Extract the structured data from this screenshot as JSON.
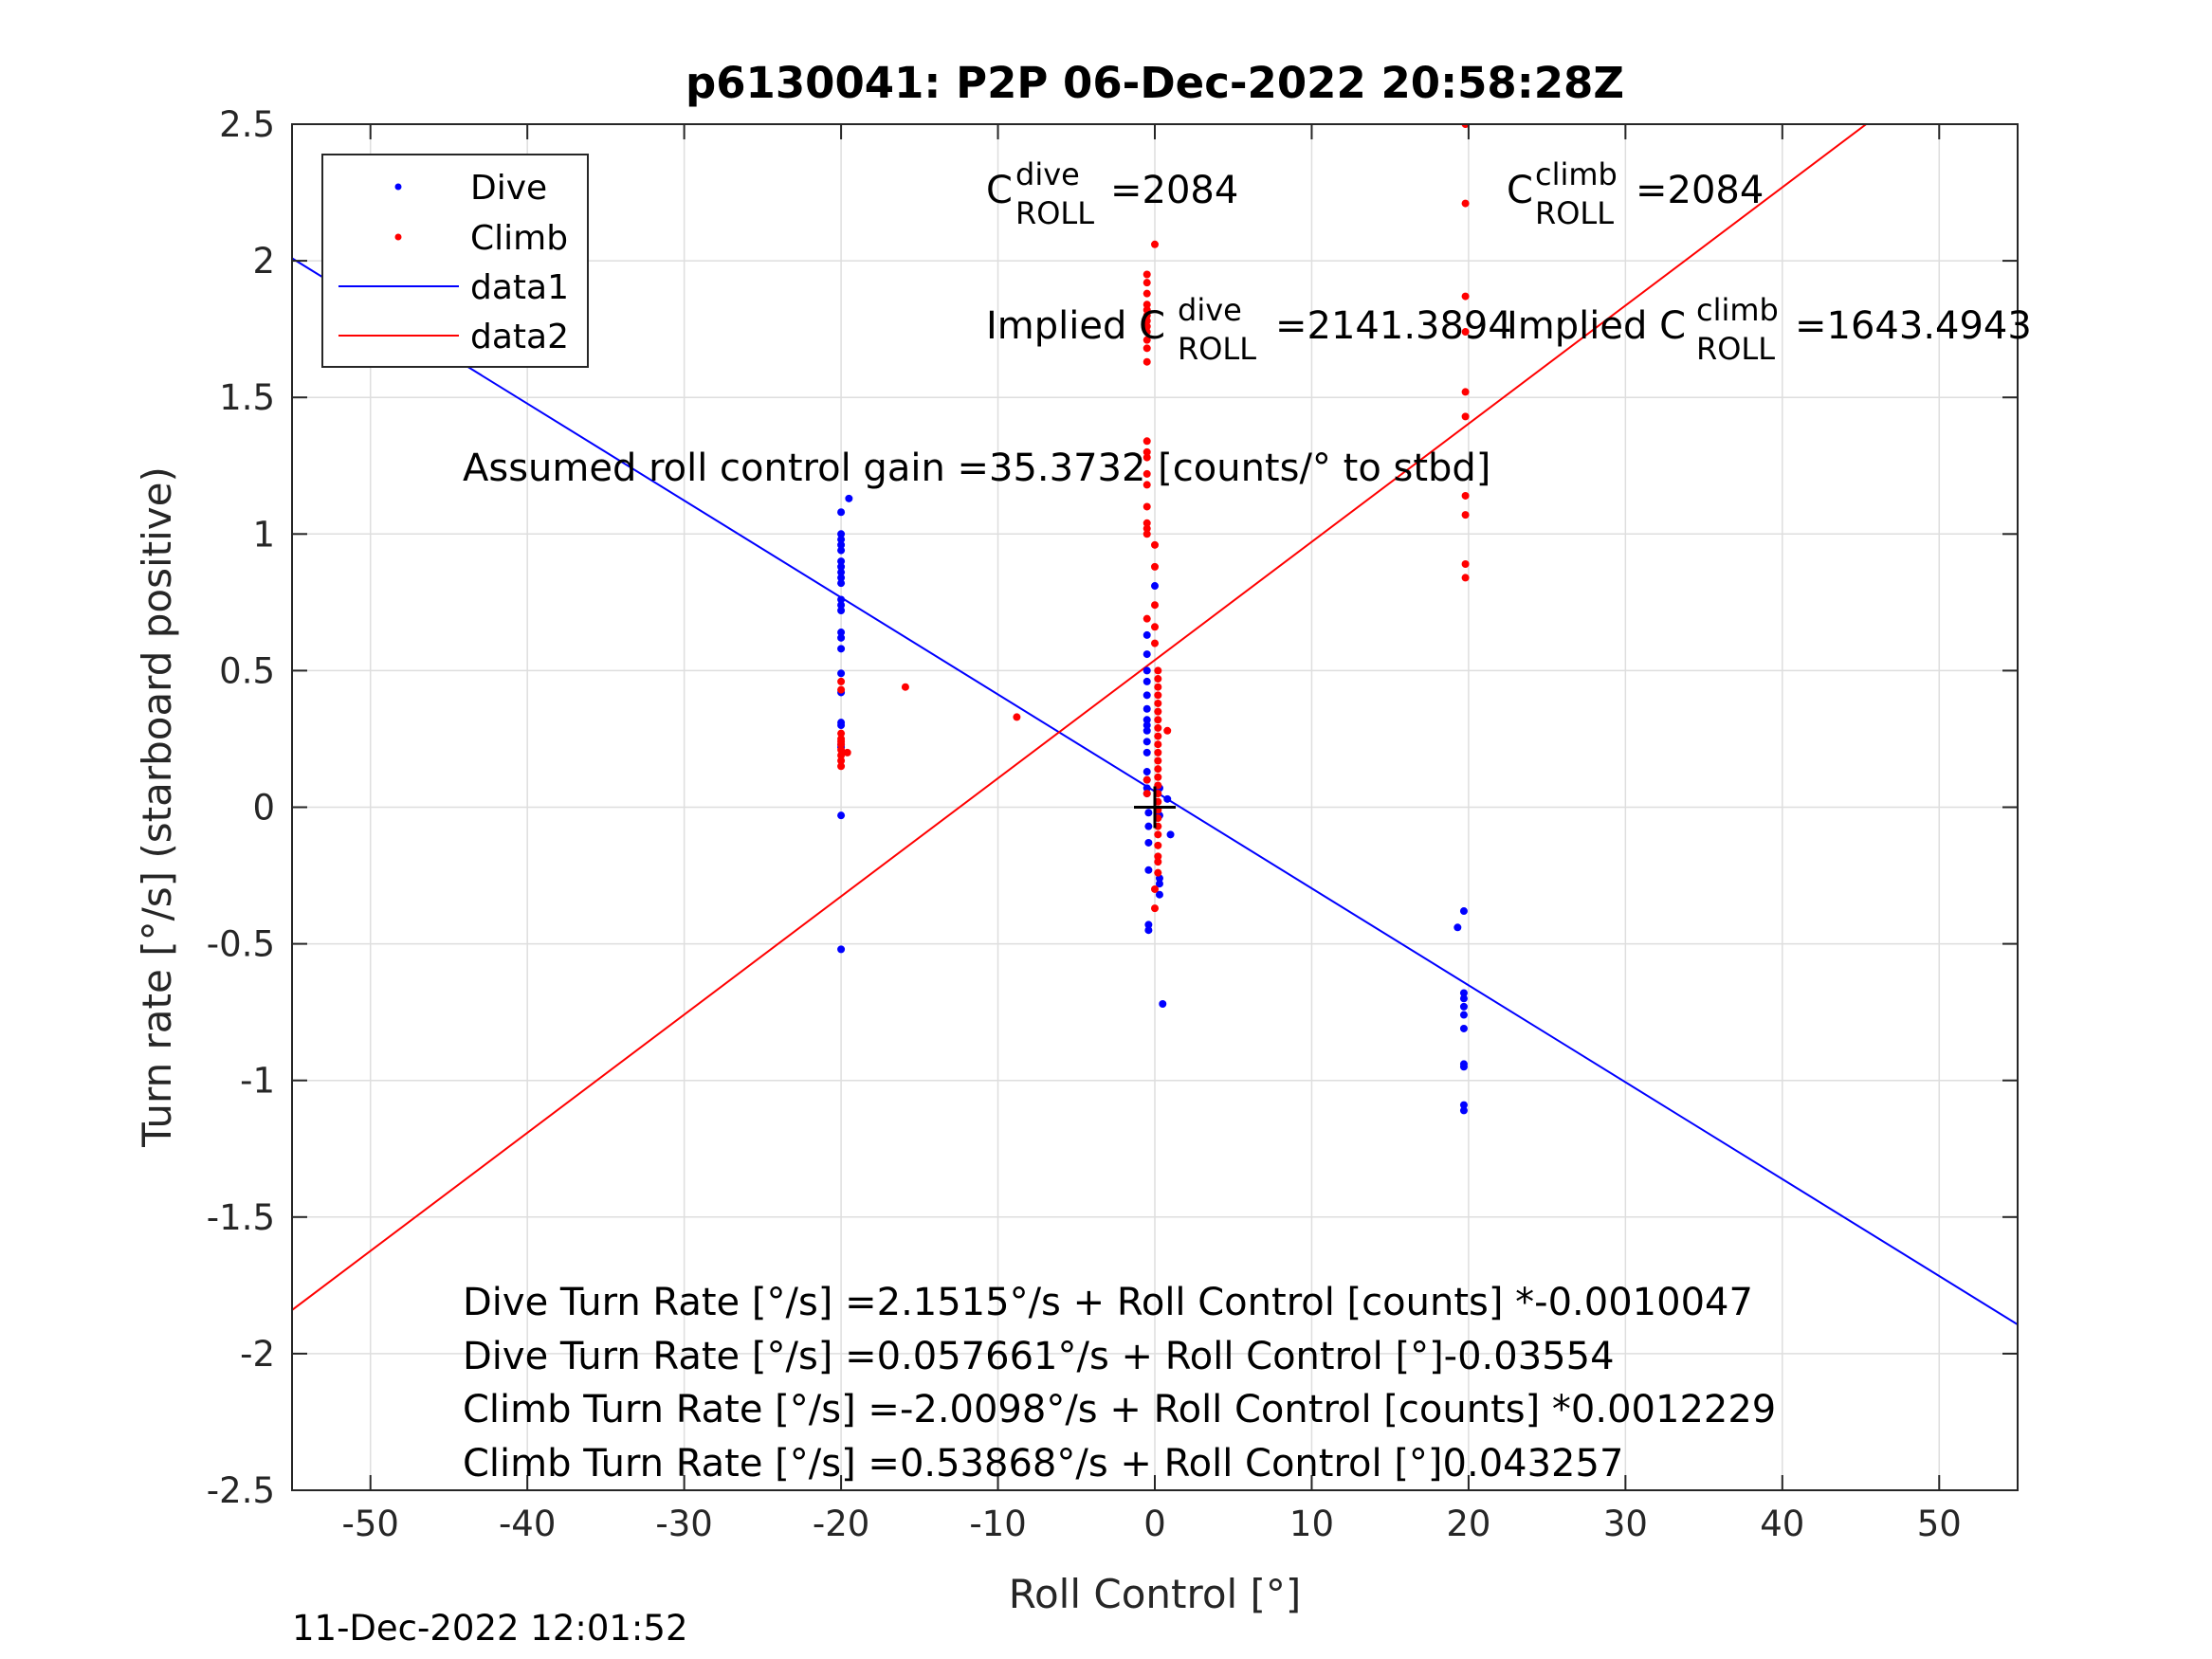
{
  "chart_data": {
    "type": "scatter",
    "title": "p6130041: P2P 06-Dec-2022 20:58:28Z",
    "xlabel": "Roll Control [°]",
    "ylabel": "Turn rate [°/s] (starboard positive)",
    "xlim": [
      -55,
      55
    ],
    "ylim": [
      -2.5,
      2.5
    ],
    "xticks": [
      -50,
      -40,
      -30,
      -20,
      -10,
      0,
      10,
      20,
      30,
      40,
      50
    ],
    "yticks": [
      -2.5,
      -2,
      -1.5,
      -1,
      -0.5,
      0,
      0.5,
      1,
      1.5,
      2,
      2.5
    ],
    "xtick_labels": [
      "-50",
      "-40",
      "-30",
      "-20",
      "-10",
      "0",
      "10",
      "20",
      "30",
      "40",
      "50"
    ],
    "ytick_labels": [
      "-2.5",
      "-2",
      "-1.5",
      "-1",
      "-0.5",
      "0",
      "0.5",
      "1",
      "1.5",
      "2",
      "2.5"
    ],
    "grid": true,
    "legend_position": "top-left",
    "series": [
      {
        "name": "Dive",
        "kind": "points",
        "color": "#0000ff",
        "points": [
          [
            -20,
            1.08
          ],
          [
            -19.5,
            1.13
          ],
          [
            -20,
            1.0
          ],
          [
            -20,
            0.98
          ],
          [
            -20,
            0.96
          ],
          [
            -20,
            0.94
          ],
          [
            -20,
            0.9
          ],
          [
            -20,
            0.88
          ],
          [
            -20,
            0.86
          ],
          [
            -20,
            0.84
          ],
          [
            -20,
            0.82
          ],
          [
            -20,
            0.76
          ],
          [
            -20,
            0.74
          ],
          [
            -20,
            0.72
          ],
          [
            -20,
            0.64
          ],
          [
            -20,
            0.62
          ],
          [
            -20,
            0.58
          ],
          [
            -20,
            0.49
          ],
          [
            -20,
            0.42
          ],
          [
            -20,
            0.31
          ],
          [
            -20,
            0.3
          ],
          [
            -20,
            0.23
          ],
          [
            -20,
            0.22
          ],
          [
            -20,
            -0.03
          ],
          [
            -20,
            -0.52
          ],
          [
            -0.5,
            0.63
          ],
          [
            -0.5,
            0.56
          ],
          [
            -0.5,
            0.5
          ],
          [
            -0.5,
            0.46
          ],
          [
            -0.5,
            0.41
          ],
          [
            -0.5,
            0.36
          ],
          [
            -0.5,
            0.32
          ],
          [
            -0.5,
            0.3
          ],
          [
            -0.5,
            0.28
          ],
          [
            -0.5,
            0.24
          ],
          [
            -0.5,
            0.2
          ],
          [
            -0.5,
            0.13
          ],
          [
            -0.5,
            0.1
          ],
          [
            -0.5,
            0.07
          ],
          [
            -0.5,
            0.05
          ],
          [
            -0.4,
            -0.02
          ],
          [
            -0.4,
            -0.07
          ],
          [
            -0.4,
            -0.13
          ],
          [
            -0.4,
            -0.23
          ],
          [
            -0.4,
            -0.43
          ],
          [
            -0.4,
            -0.45
          ],
          [
            0,
            0.81
          ],
          [
            0.3,
            0.07
          ],
          [
            0.3,
            -0.03
          ],
          [
            0.3,
            -0.26
          ],
          [
            0.3,
            -0.28
          ],
          [
            0.3,
            -0.32
          ],
          [
            0.5,
            -0.72
          ],
          [
            1.0,
            -0.1
          ],
          [
            0.8,
            0.03
          ],
          [
            19.3,
            -0.44
          ],
          [
            19.7,
            -0.38
          ],
          [
            19.7,
            -0.68
          ],
          [
            19.7,
            -0.7
          ],
          [
            19.7,
            -0.73
          ],
          [
            19.7,
            -0.76
          ],
          [
            19.7,
            -0.81
          ],
          [
            19.7,
            -0.94
          ],
          [
            19.7,
            -0.95
          ],
          [
            19.7,
            -1.09
          ],
          [
            19.7,
            -1.11
          ]
        ]
      },
      {
        "name": "Climb",
        "kind": "points",
        "color": "#ff0000",
        "points": [
          [
            -20,
            0.46
          ],
          [
            -20,
            0.43
          ],
          [
            -20,
            0.27
          ],
          [
            -20,
            0.25
          ],
          [
            -20,
            0.23
          ],
          [
            -20,
            0.21
          ],
          [
            -20,
            0.19
          ],
          [
            -20,
            0.17
          ],
          [
            -20,
            0.15
          ],
          [
            -20,
            0.24
          ],
          [
            -19.6,
            0.2
          ],
          [
            -15.9,
            0.44
          ],
          [
            -8.8,
            0.33
          ],
          [
            -0.5,
            1.95
          ],
          [
            -0.5,
            1.92
          ],
          [
            -0.5,
            1.88
          ],
          [
            -0.5,
            1.84
          ],
          [
            -0.5,
            1.82
          ],
          [
            -0.5,
            1.8
          ],
          [
            -0.5,
            1.78
          ],
          [
            -0.5,
            1.76
          ],
          [
            -0.5,
            1.74
          ],
          [
            -0.5,
            1.71
          ],
          [
            -0.5,
            1.68
          ],
          [
            -0.5,
            1.63
          ],
          [
            -0.5,
            1.34
          ],
          [
            -0.5,
            1.3
          ],
          [
            -0.5,
            1.28
          ],
          [
            -0.5,
            1.22
          ],
          [
            -0.5,
            1.18
          ],
          [
            -0.5,
            1.1
          ],
          [
            -0.5,
            1.04
          ],
          [
            -0.5,
            1.02
          ],
          [
            -0.5,
            1.0
          ],
          [
            -0.5,
            0.69
          ],
          [
            -0.5,
            0.1
          ],
          [
            -0.5,
            0.05
          ],
          [
            0,
            2.06
          ],
          [
            0,
            0.96
          ],
          [
            0,
            0.88
          ],
          [
            0,
            0.74
          ],
          [
            0,
            0.66
          ],
          [
            0,
            0.6
          ],
          [
            0.2,
            0.5
          ],
          [
            0.2,
            0.47
          ],
          [
            0.2,
            0.44
          ],
          [
            0.2,
            0.41
          ],
          [
            0.2,
            0.38
          ],
          [
            0.2,
            0.35
          ],
          [
            0.2,
            0.32
          ],
          [
            0.2,
            0.29
          ],
          [
            0.2,
            0.26
          ],
          [
            0.2,
            0.23
          ],
          [
            0.2,
            0.2
          ],
          [
            0.2,
            0.17
          ],
          [
            0.2,
            0.14
          ],
          [
            0.2,
            0.11
          ],
          [
            0.2,
            0.08
          ],
          [
            0.2,
            0.05
          ],
          [
            0.2,
            0.02
          ],
          [
            0.2,
            -0.01
          ],
          [
            0.2,
            -0.04
          ],
          [
            0.2,
            -0.07
          ],
          [
            0.2,
            -0.1
          ],
          [
            0.2,
            -0.14
          ],
          [
            0.2,
            -0.18
          ],
          [
            0.2,
            -0.2
          ],
          [
            0.2,
            -0.24
          ],
          [
            0,
            -0.3
          ],
          [
            0,
            -0.37
          ],
          [
            0.8,
            0.28
          ],
          [
            19.8,
            2.5
          ],
          [
            19.8,
            2.21
          ],
          [
            19.8,
            1.87
          ],
          [
            19.8,
            1.74
          ],
          [
            19.8,
            1.52
          ],
          [
            19.8,
            1.43
          ],
          [
            19.8,
            1.14
          ],
          [
            19.8,
            1.07
          ],
          [
            19.8,
            0.89
          ],
          [
            19.8,
            0.84
          ]
        ]
      },
      {
        "name": "data1",
        "kind": "line",
        "color": "#0000ff",
        "x": [
          -55,
          55
        ],
        "y": [
          2.0094,
          -1.8934
        ]
      },
      {
        "name": "data2",
        "kind": "line",
        "color": "#ff0000",
        "x": [
          -55,
          55
        ],
        "y": [
          -1.8404,
          2.9177
        ]
      },
      {
        "name": "",
        "kind": "marker",
        "color": "#000000",
        "x": [
          0
        ],
        "y": [
          0
        ]
      }
    ],
    "annotations": {
      "c_dive": {
        "prefix": "C",
        "sup": "dive",
        "sub": "ROLL",
        "value": "=2084"
      },
      "c_climb": {
        "prefix": "C",
        "sup": "climb",
        "sub": "ROLL",
        "value": "=2084"
      },
      "implied_dive": {
        "prefix": "Implied C",
        "sup": "dive",
        "sub": "ROLL",
        "value": "=2141.3894"
      },
      "implied_climb": {
        "prefix": "Implied C",
        "sup": "climb",
        "sub": "ROLL",
        "value": "=1643.4943"
      },
      "gain": "Assumed roll control gain =35.3732 [counts/° to stbd]",
      "equations": [
        "Dive Turn Rate [°/s] =2.1515°/s + Roll Control [counts] *-0.0010047",
        "Dive Turn Rate [°/s] =0.057661°/s + Roll Control [°]-0.03554",
        "Climb Turn Rate [°/s] =-2.0098°/s + Roll Control [counts] *0.0012229",
        "Climb Turn Rate [°/s] =0.53868°/s + Roll Control [°]0.043257"
      ]
    }
  },
  "footer_timestamp": "11-Dec-2022 12:01:52"
}
